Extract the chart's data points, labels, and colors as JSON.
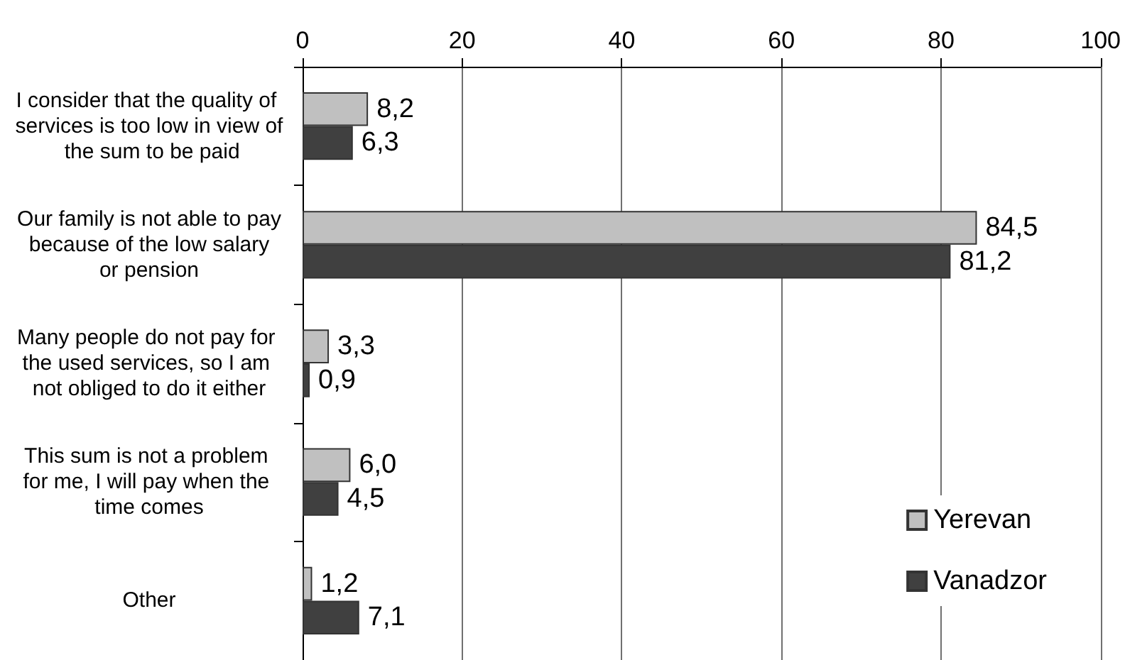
{
  "chart_data": {
    "type": "bar",
    "orientation": "horizontal",
    "categories": [
      "I consider that the quality of services is too low in view of the sum to be paid",
      "Our family is not able to pay because of the low salary or pension",
      "Many people do not pay for the used services, so I am not obliged to do it either",
      "This sum is not a problem for me, I will pay when the time comes",
      "Other"
    ],
    "series": [
      {
        "name": "Yerevan",
        "color": "#c0c0c0",
        "values": [
          8.2,
          84.5,
          3.3,
          6.0,
          1.2
        ],
        "value_labels": [
          "8,2",
          "84,5",
          "3,3",
          "6,0",
          "1,2"
        ]
      },
      {
        "name": "Vanadzor",
        "color": "#404040",
        "values": [
          6.3,
          81.2,
          0.9,
          4.5,
          7.1
        ],
        "value_labels": [
          "6,3",
          "81,2",
          "0,9",
          "4,5",
          "7,1"
        ]
      }
    ],
    "xlim": [
      0,
      100
    ],
    "xticks": [
      0,
      20,
      40,
      60,
      80,
      100
    ],
    "grid": "x",
    "legend": "bottom right"
  }
}
